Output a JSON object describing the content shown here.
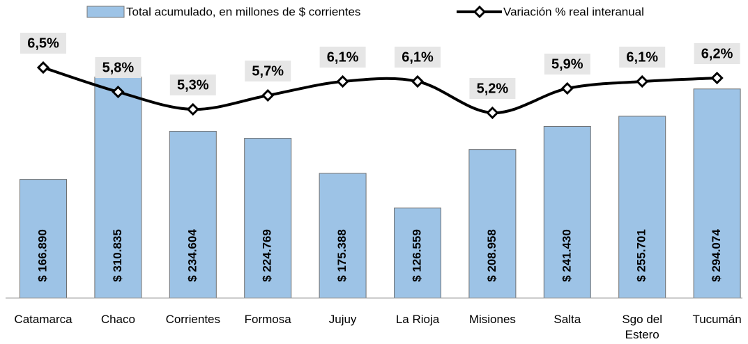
{
  "chart_data": {
    "type": "combo",
    "categories": [
      "Catamarca",
      "Chaco",
      "Corrientes",
      "Formosa",
      "Jujuy",
      "La Rioja",
      "Misiones",
      "Salta",
      "Sgo del Estero",
      "Tucumán"
    ],
    "series": [
      {
        "name": "Total acumulado, en millones de $ corrientes",
        "type": "bar",
        "color": "#9dc3e6",
        "values": [
          166890,
          310835,
          234604,
          224769,
          175388,
          126559,
          208958,
          241430,
          255701,
          294074
        ],
        "value_labels": [
          "$ 166.890",
          "$ 310.835",
          "$ 234.604",
          "$ 224.769",
          "$ 175.388",
          "$ 126.559",
          "$ 208.958",
          "$ 241.430",
          "$ 255.701",
          "$ 294.074"
        ]
      },
      {
        "name": "Variación % real interanual",
        "type": "line",
        "color": "#000000",
        "axis": "y2",
        "values": [
          6.5,
          5.8,
          5.3,
          5.7,
          6.1,
          6.1,
          5.2,
          5.9,
          6.1,
          6.2
        ],
        "value_labels": [
          "6,5%",
          "5,8%",
          "5,3%",
          "5,7%",
          "6,1%",
          "6,1%",
          "5,2%",
          "5,9%",
          "6,1%",
          "6,2%"
        ]
      }
    ],
    "ylim": [
      0,
      380000
    ],
    "y2lim": [
      -0.12,
      7.64
    ],
    "legend": "top"
  }
}
